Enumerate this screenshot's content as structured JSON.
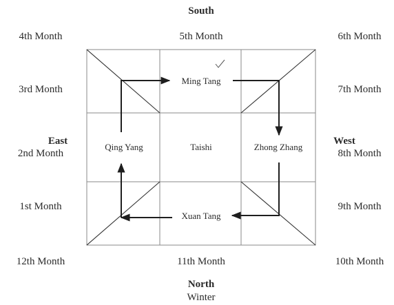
{
  "directions": {
    "south": "South",
    "north": "North",
    "east": "East",
    "west": "West",
    "north_season": "Winter"
  },
  "months": {
    "m1": "1st Month",
    "m2": "2nd Month",
    "m3": "3rd Month",
    "m4": "4th Month",
    "m5": "5th Month",
    "m6": "6th Month",
    "m7": "7th Month",
    "m8": "8th Month",
    "m9": "9th Month",
    "m10": "10th Month",
    "m11": "11th Month",
    "m12": "12th Month"
  },
  "rooms": {
    "center": "Taishi",
    "south": "Ming Tang",
    "east": "Qing Yang",
    "west": "Zhong Zhang",
    "north": "Xuan Tang"
  }
}
